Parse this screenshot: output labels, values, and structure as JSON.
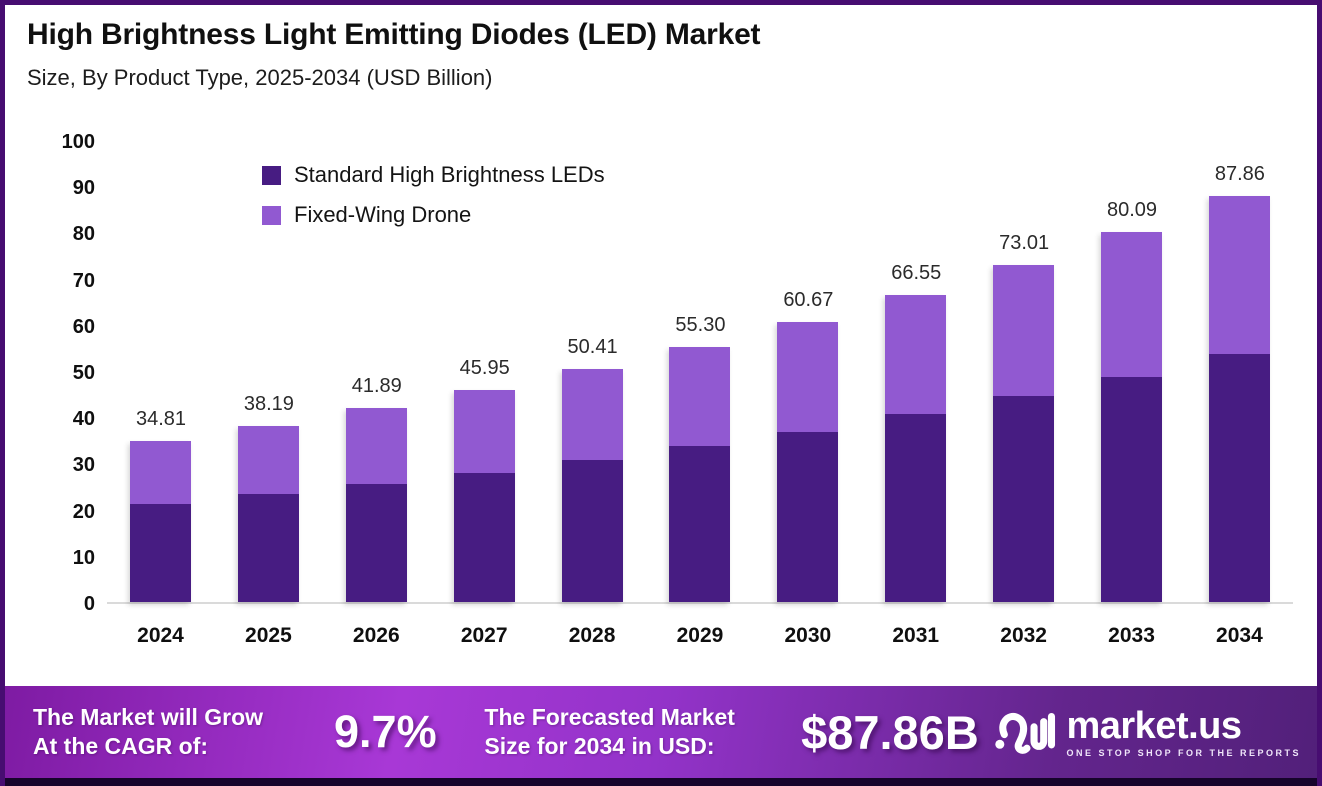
{
  "frame": {
    "border_color": "#470D71",
    "bottom_strip_color": "#16042B"
  },
  "header": {
    "title": "High Brightness Light Emitting Diodes (LED) Market",
    "subtitle": "Size, By Product Type, 2025-2034 (USD Billion)"
  },
  "chart_data": {
    "type": "bar",
    "stacked": true,
    "title": "High Brightness Light Emitting Diodes (LED) Market Size, By Product Type, 2025-2034 (USD Billion)",
    "categories": [
      "2024",
      "2025",
      "2026",
      "2027",
      "2028",
      "2029",
      "2030",
      "2031",
      "2032",
      "2033",
      "2034"
    ],
    "series": [
      {
        "name": "Standard High Brightness LEDs",
        "color": "#471C82",
        "values": [
          21.2,
          23.3,
          25.5,
          28.0,
          30.7,
          33.7,
          36.9,
          40.6,
          44.6,
          48.8,
          53.6
        ]
      },
      {
        "name": "Fixed-Wing Drone",
        "color": "#9159D1",
        "values": [
          13.61,
          14.89,
          16.39,
          17.95,
          19.71,
          21.6,
          23.77,
          25.95,
          28.41,
          31.29,
          34.26
        ]
      }
    ],
    "totals": [
      34.81,
      38.19,
      41.89,
      45.95,
      50.41,
      55.3,
      60.67,
      66.55,
      73.01,
      80.09,
      87.86
    ],
    "total_labels": [
      "34.81",
      "38.19",
      "41.89",
      "45.95",
      "50.41",
      "55.30",
      "60.67",
      "66.55",
      "73.01",
      "80.09",
      "87.86"
    ],
    "xlabel": "",
    "ylabel": "",
    "ylim": [
      0,
      100
    ],
    "yticks": [
      0,
      10,
      20,
      30,
      40,
      50,
      60,
      70,
      80,
      90,
      100
    ],
    "grid": false,
    "legend_position": "upper-left-inside",
    "axis_line_color": "#dadada",
    "value_label_color": "#2b2b2b"
  },
  "banner": {
    "cagr_line1": "The Market will Grow",
    "cagr_line2": "At the CAGR of:",
    "cagr_value": "9.7%",
    "forecast_line1": "The Forecasted Market",
    "forecast_line2": "Size for 2034 in USD:",
    "forecast_value": "$87.86B",
    "gradient_stops": [
      "#7E1BA3",
      "#A838D6",
      "#9333C9",
      "#63258D",
      "#52207A"
    ]
  },
  "logo": {
    "brand": "market.us",
    "tagline": "ONE STOP SHOP FOR THE REPORTS",
    "icon": "market-us-waves-icon"
  }
}
